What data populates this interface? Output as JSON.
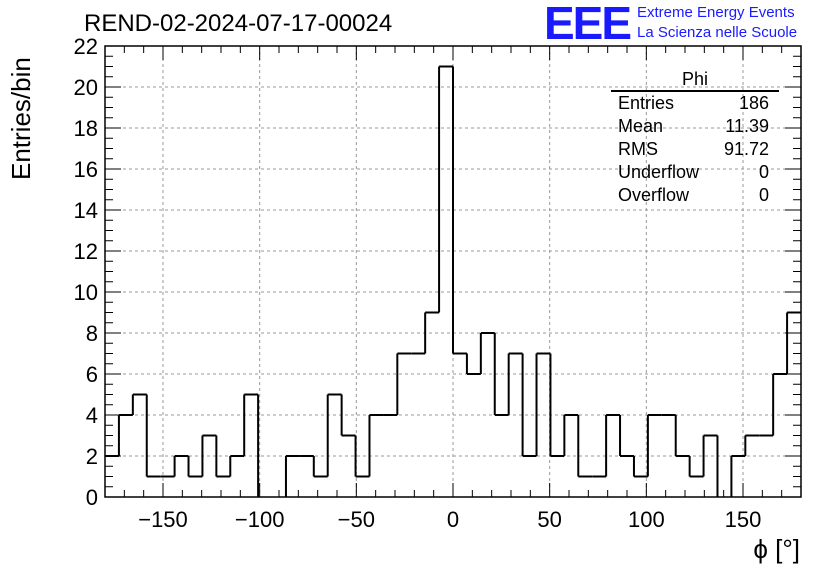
{
  "title": "REND-02-2024-07-17-00024",
  "logo": {
    "text": "EEE",
    "line1": "Extreme Energy Events",
    "line2": "La Scienza nelle Scuole"
  },
  "stats": {
    "name": "Phi",
    "rows": [
      {
        "label": "Entries",
        "value": "186"
      },
      {
        "label": "Mean",
        "value": "11.39"
      },
      {
        "label": "RMS",
        "value": "91.72"
      },
      {
        "label": "Underflow",
        "value": "0"
      },
      {
        "label": "Overflow",
        "value": "0"
      }
    ]
  },
  "colors": {
    "line": "#000000",
    "grid": "#9a9a9a",
    "logo": "#1a1aff"
  },
  "chart_data": {
    "type": "histogram",
    "title": "REND-02-2024-07-17-00024",
    "xlabel": "ϕ [°]",
    "ylabel": "Entries/bin",
    "xlim": [
      -180,
      180
    ],
    "ylim": [
      0,
      22
    ],
    "grid": true,
    "bin_width": 7.2,
    "x_ticks": [
      -150,
      -100,
      -50,
      0,
      50,
      100,
      150
    ],
    "y_ticks": [
      0,
      2,
      4,
      6,
      8,
      10,
      12,
      14,
      16,
      18,
      20,
      22
    ],
    "values": [
      2,
      4,
      5,
      1,
      1,
      2,
      1,
      3,
      1,
      2,
      5,
      0,
      0,
      2,
      2,
      1,
      5,
      3,
      1,
      4,
      4,
      7,
      7,
      9,
      21,
      7,
      6,
      8,
      4,
      7,
      2,
      7,
      2,
      4,
      1,
      1,
      4,
      2,
      1,
      4,
      4,
      2,
      1,
      3,
      0,
      2,
      3,
      3,
      6,
      9
    ]
  }
}
